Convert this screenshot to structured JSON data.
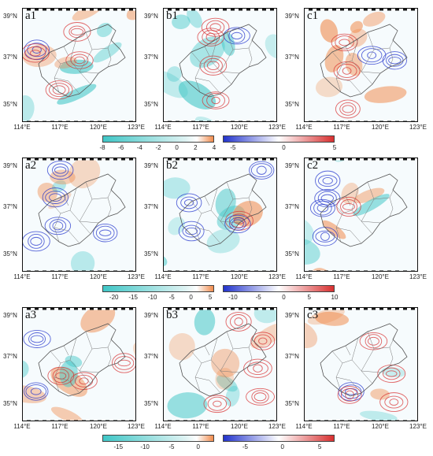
{
  "panels": [
    {
      "id": "a1",
      "row": 0,
      "col": 0
    },
    {
      "id": "b1",
      "row": 0,
      "col": 1
    },
    {
      "id": "c1",
      "row": 0,
      "col": 2
    },
    {
      "id": "a2",
      "row": 1,
      "col": 0
    },
    {
      "id": "b2",
      "row": 1,
      "col": 1
    },
    {
      "id": "c2",
      "row": 1,
      "col": 2
    },
    {
      "id": "a3",
      "row": 2,
      "col": 0
    },
    {
      "id": "b3",
      "row": 2,
      "col": 1
    },
    {
      "id": "c3",
      "row": 2,
      "col": 2
    }
  ],
  "lat_labels": [
    "39°N",
    "37°N",
    "35°N"
  ],
  "lon_labels": [
    "114°E",
    "117°E",
    "120°E",
    "123°E"
  ],
  "colorbars": [
    {
      "row": 1,
      "fill": {
        "ticks": [
          "-8",
          "-6",
          "-4",
          "-2",
          "0",
          "2",
          "4"
        ],
        "min": -8,
        "max": 4
      },
      "contour": {
        "ticks": [
          "-5",
          "0",
          "5"
        ],
        "min": -6,
        "max": 5
      }
    },
    {
      "row": 2,
      "fill": {
        "ticks": [
          "-20",
          "-15",
          "-10",
          "-5",
          "0",
          "5"
        ],
        "min": -23,
        "max": 6
      },
      "contour": {
        "ticks": [
          "-10",
          "-5",
          "0",
          "5",
          "10"
        ],
        "min": -12,
        "max": 10
      }
    },
    {
      "row": 3,
      "fill": {
        "ticks": [
          "-15",
          "-10",
          "-5",
          "0"
        ],
        "min": -18,
        "max": 3
      },
      "contour": {
        "ticks": [
          "-5",
          "0",
          "5"
        ],
        "min": -8,
        "max": 7
      }
    }
  ],
  "colors": {
    "negative_fill": "#3fc6c6",
    "positive_fill": "#f08a4b",
    "contour_negative": "#2233cc",
    "contour_positive": "#d83030"
  }
}
